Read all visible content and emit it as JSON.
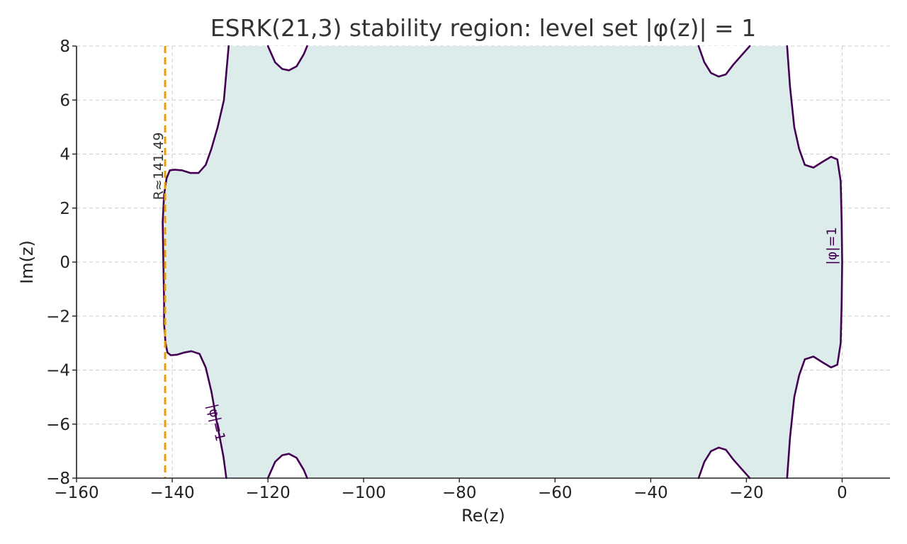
{
  "chart_data": {
    "type": "line",
    "title": "ESRK(21,3) stability region: level set |φ(z)| = 1",
    "xlabel": "Re(z)",
    "ylabel": "Im(z)",
    "xlim": [
      -160,
      10
    ],
    "ylim": [
      -8,
      8
    ],
    "xticks": [
      -160,
      -140,
      -120,
      -100,
      -80,
      -60,
      -40,
      -20,
      0
    ],
    "yticks": [
      -8,
      -6,
      -4,
      -2,
      0,
      2,
      4,
      6,
      8
    ],
    "xtick_labels": [
      "−160",
      "−140",
      "−120",
      "−100",
      "−80",
      "−60",
      "−40",
      "−20",
      "0"
    ],
    "ytick_labels": [
      "−8",
      "−6",
      "−4",
      "−2",
      "0",
      "2",
      "4",
      "6",
      "8"
    ],
    "grid": true,
    "colors": {
      "contour": "#440154",
      "fill": "#dcecea",
      "reference_line": "#e69f00",
      "grid": "#cccccc"
    },
    "reference_line": {
      "x": -141.49,
      "label": "R≈141.49"
    },
    "contour_labels": [
      "|φ|=1",
      "|φ|=1"
    ],
    "series": [
      {
        "values": [
          [
            -128.2,
            8.0
          ],
          [
            -129.2,
            6.0
          ],
          [
            -130.5,
            5.0
          ],
          [
            -131.8,
            4.2
          ],
          [
            -133.0,
            3.6
          ],
          [
            -134.5,
            3.3
          ],
          [
            -136.2,
            3.3
          ],
          [
            -138.0,
            3.4
          ],
          [
            -139.5,
            3.42
          ],
          [
            -140.5,
            3.4
          ],
          [
            -141.2,
            3.1
          ],
          [
            -141.7,
            2.5
          ],
          [
            -142.0,
            1.5
          ],
          [
            -141.9,
            0.5
          ],
          [
            -141.8,
            -0.5
          ],
          [
            -141.7,
            -1.5
          ],
          [
            -141.7,
            -2.3
          ],
          [
            -141.4,
            -3.0
          ],
          [
            -141.0,
            -3.35
          ],
          [
            -140.3,
            -3.45
          ],
          [
            -139.0,
            -3.43
          ],
          [
            -137.5,
            -3.35
          ],
          [
            -136.0,
            -3.3
          ],
          [
            -134.3,
            -3.4
          ],
          [
            -133.0,
            -3.9
          ],
          [
            -131.8,
            -4.8
          ],
          [
            -130.6,
            -6.0
          ],
          [
            -129.3,
            -7.2
          ],
          [
            -128.7,
            -8.0
          ]
        ]
      },
      {
        "values": [
          [
            -120.0,
            8.0
          ],
          [
            -118.5,
            7.4
          ],
          [
            -117.0,
            7.15
          ],
          [
            -115.6,
            7.1
          ],
          [
            -114.0,
            7.25
          ],
          [
            -112.5,
            7.7
          ],
          [
            -111.8,
            8.0
          ]
        ]
      },
      {
        "values": [
          [
            -120.0,
            -8.0
          ],
          [
            -118.5,
            -7.4
          ],
          [
            -117.0,
            -7.15
          ],
          [
            -115.6,
            -7.1
          ],
          [
            -114.0,
            -7.25
          ],
          [
            -112.5,
            -7.7
          ],
          [
            -111.8,
            -8.0
          ]
        ]
      },
      {
        "values": [
          [
            -30.0,
            8.0
          ],
          [
            -28.8,
            7.4
          ],
          [
            -27.4,
            7.0
          ],
          [
            -25.8,
            6.87
          ],
          [
            -24.3,
            6.95
          ],
          [
            -22.8,
            7.3
          ],
          [
            -20.8,
            7.7
          ],
          [
            -19.3,
            8.0
          ]
        ]
      },
      {
        "values": [
          [
            -30.0,
            -8.0
          ],
          [
            -28.8,
            -7.4
          ],
          [
            -27.4,
            -7.0
          ],
          [
            -25.8,
            -6.87
          ],
          [
            -24.3,
            -6.95
          ],
          [
            -22.8,
            -7.3
          ],
          [
            -20.8,
            -7.7
          ],
          [
            -19.3,
            -8.0
          ]
        ]
      },
      {
        "values": [
          [
            -11.5,
            8.0
          ],
          [
            -10.9,
            6.5
          ],
          [
            -10.0,
            5.0
          ],
          [
            -9.0,
            4.2
          ],
          [
            -7.8,
            3.6
          ],
          [
            -6.0,
            3.5
          ],
          [
            -4.2,
            3.7
          ],
          [
            -2.3,
            3.9
          ],
          [
            -1.0,
            3.8
          ],
          [
            -0.3,
            3.0
          ],
          [
            -0.1,
            1.5
          ],
          [
            0.0,
            0.0
          ],
          [
            -0.1,
            -1.5
          ],
          [
            -0.3,
            -3.0
          ],
          [
            -1.0,
            -3.8
          ],
          [
            -2.3,
            -3.9
          ],
          [
            -4.2,
            -3.7
          ],
          [
            -6.0,
            -3.5
          ],
          [
            -7.8,
            -3.6
          ],
          [
            -9.0,
            -4.2
          ],
          [
            -10.0,
            -5.0
          ],
          [
            -10.9,
            -6.5
          ],
          [
            -11.5,
            -8.0
          ]
        ]
      }
    ]
  }
}
